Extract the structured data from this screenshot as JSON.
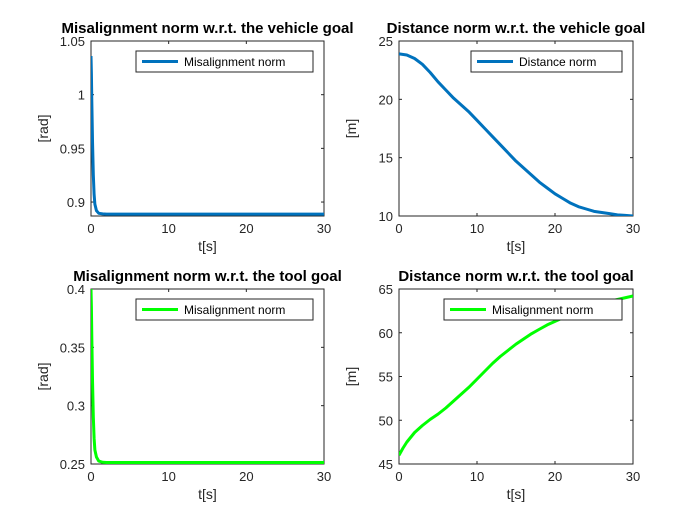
{
  "chart_data": [
    {
      "type": "line",
      "title": "Misalignment norm w.r.t. the vehicle goal",
      "xlabel": "t[s]",
      "ylabel": "[rad]",
      "xlim": [
        0,
        30
      ],
      "ylim": [
        0.887,
        1.05
      ],
      "xticks": [
        "0",
        "10",
        "20",
        "30"
      ],
      "yticks": [
        "0.9",
        "0.95",
        "1",
        "1.05"
      ],
      "ytick_values": [
        0.9,
        0.95,
        1,
        1.05
      ],
      "xtick_values": [
        0,
        10,
        20,
        30
      ],
      "legend_position": "top-right",
      "series": [
        {
          "name": "Misalignment norm",
          "color": "#0072BD",
          "x": [
            0,
            0.05,
            0.1,
            0.2,
            0.3,
            0.4,
            0.5,
            0.7,
            1.0,
            1.5,
            2.0,
            3.0,
            5.0,
            10.0,
            20.0,
            30.0
          ],
          "y": [
            1.036,
            1.02,
            0.995,
            0.955,
            0.925,
            0.907,
            0.898,
            0.892,
            0.8895,
            0.889,
            0.8888,
            0.8888,
            0.8888,
            0.8888,
            0.8888,
            0.8888
          ]
        }
      ]
    },
    {
      "type": "line",
      "title": "Distance norm w.r.t. the vehicle goal",
      "xlabel": "t[s]",
      "ylabel": "[m]",
      "xlim": [
        0,
        30
      ],
      "ylim": [
        10,
        25
      ],
      "xticks": [
        "0",
        "10",
        "20",
        "30"
      ],
      "yticks": [
        "10",
        "15",
        "20",
        "25"
      ],
      "ytick_values": [
        10,
        15,
        20,
        25
      ],
      "xtick_values": [
        0,
        10,
        20,
        30
      ],
      "legend_position": "top-right",
      "series": [
        {
          "name": "Distance norm",
          "color": "#0072BD",
          "x": [
            0,
            1,
            2,
            3,
            4,
            5,
            6,
            7,
            8,
            9,
            10,
            11,
            12,
            13,
            14,
            15,
            16,
            17,
            18,
            19,
            20,
            21,
            22,
            23,
            24,
            25,
            26,
            27,
            28,
            29,
            30
          ],
          "y": [
            23.9,
            23.8,
            23.5,
            23.0,
            22.3,
            21.5,
            20.8,
            20.1,
            19.5,
            18.9,
            18.2,
            17.5,
            16.8,
            16.1,
            15.4,
            14.7,
            14.1,
            13.5,
            12.9,
            12.4,
            11.9,
            11.5,
            11.1,
            10.8,
            10.6,
            10.4,
            10.3,
            10.2,
            10.1,
            10.05,
            10.0
          ]
        }
      ]
    },
    {
      "type": "line",
      "title": "Misalignment norm w.r.t. the tool goal",
      "xlabel": "t[s]",
      "ylabel": "[rad]",
      "xlim": [
        0,
        30
      ],
      "ylim": [
        0.25,
        0.4
      ],
      "xticks": [
        "0",
        "10",
        "20",
        "30"
      ],
      "yticks": [
        "0.25",
        "0.3",
        "0.35",
        "0.4"
      ],
      "ytick_values": [
        0.25,
        0.3,
        0.35,
        0.4
      ],
      "xtick_values": [
        0,
        10,
        20,
        30
      ],
      "legend_position": "top-right",
      "series": [
        {
          "name": "Misalignment norm",
          "color": "#00FF00",
          "x": [
            0,
            0.05,
            0.1,
            0.2,
            0.3,
            0.4,
            0.5,
            0.7,
            1.0,
            1.5,
            2.0,
            3.0,
            5.0,
            10.0,
            20.0,
            30.0
          ],
          "y": [
            0.4,
            0.385,
            0.36,
            0.32,
            0.29,
            0.272,
            0.262,
            0.256,
            0.2525,
            0.2515,
            0.2513,
            0.2513,
            0.2513,
            0.2513,
            0.2513,
            0.2513
          ]
        }
      ]
    },
    {
      "type": "line",
      "title": "Distance norm w.r.t. the tool goal",
      "xlabel": "t[s]",
      "ylabel": "[m]",
      "xlim": [
        0,
        30
      ],
      "ylim": [
        45,
        65
      ],
      "xticks": [
        "0",
        "10",
        "20",
        "30"
      ],
      "yticks": [
        "45",
        "50",
        "55",
        "60",
        "65"
      ],
      "ytick_values": [
        45,
        50,
        55,
        60,
        65
      ],
      "xtick_values": [
        0,
        10,
        20,
        30
      ],
      "legend_position": "top-right",
      "series": [
        {
          "name": "Misalignment norm",
          "color": "#00FF00",
          "x": [
            0,
            0.5,
            1,
            2,
            3,
            4,
            5,
            6,
            7,
            8,
            9,
            10,
            11,
            12,
            13,
            14,
            15,
            16,
            17,
            18,
            19,
            20,
            21,
            22,
            23,
            24,
            25,
            26,
            27,
            28,
            29,
            30
          ],
          "y": [
            46.0,
            46.8,
            47.5,
            48.6,
            49.4,
            50.1,
            50.7,
            51.4,
            52.2,
            53.0,
            53.8,
            54.7,
            55.6,
            56.5,
            57.3,
            58.0,
            58.7,
            59.3,
            59.9,
            60.4,
            60.9,
            61.3,
            61.7,
            62.1,
            62.5,
            62.8,
            63.1,
            63.4,
            63.6,
            63.8,
            64.0,
            64.2
          ]
        }
      ]
    }
  ]
}
